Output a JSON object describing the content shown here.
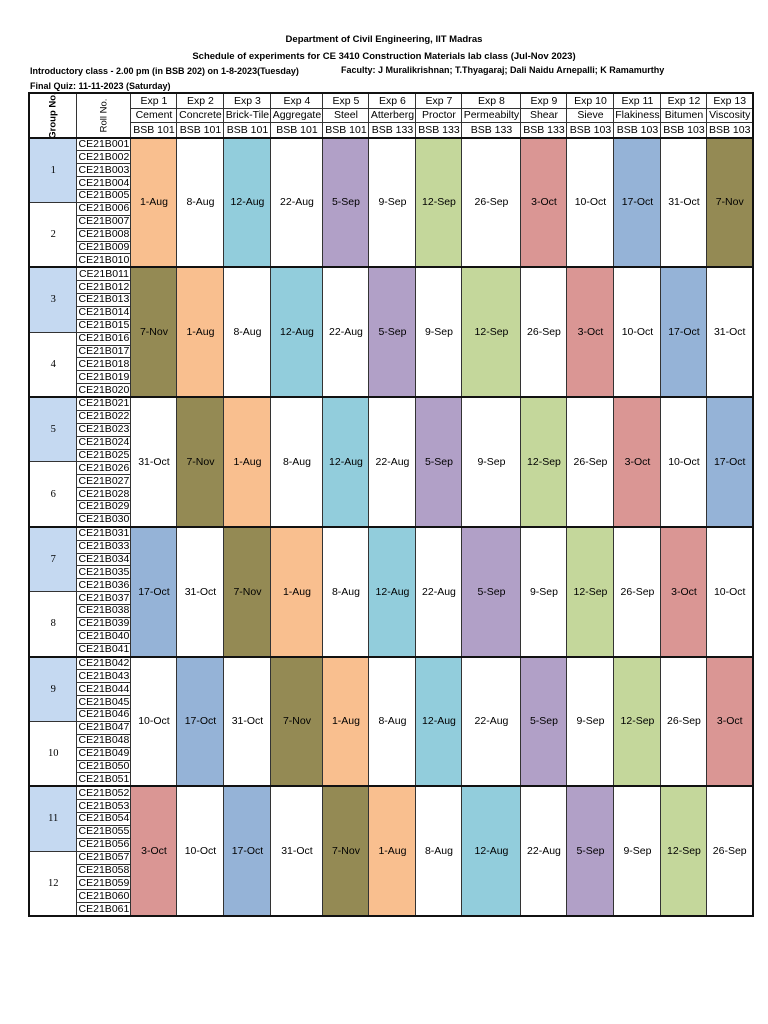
{
  "header": {
    "line1": "Department of Civil Engineering, IIT Madras",
    "line2": "Schedule of experiments for CE 3410 Construction Materials lab class (Jul-Nov 2023)",
    "intro": "Introductory class - 2.00 pm (in BSB 202) on 1-8-2023(Tuesday)",
    "faculty": "Faculty: J Muralikrishnan; T.Thyagaraj; Dali Naidu Arnepalli; K Ramamurthy",
    "quiz": "Final Quiz: 11-11-2023 (Saturday)"
  },
  "table": {
    "group_header": "Group No.",
    "roll_header": "Roll No.",
    "experiments": [
      {
        "exp": "Exp 1",
        "name": "Cement",
        "room": "BSB 101"
      },
      {
        "exp": "Exp 2",
        "name": "Concrete",
        "room": "BSB 101"
      },
      {
        "exp": "Exp 3",
        "name": "Brick-Tile",
        "room": "BSB 101"
      },
      {
        "exp": "Exp 4",
        "name": "Aggregate",
        "room": "BSB 101"
      },
      {
        "exp": "Exp 5",
        "name": "Steel",
        "room": "BSB 101"
      },
      {
        "exp": "Exp 6",
        "name": "Atterberg",
        "room": "BSB 133"
      },
      {
        "exp": "Exp 7",
        "name": "Proctor",
        "room": "BSB 133"
      },
      {
        "exp": "Exp 8",
        "name": "Permeabilty",
        "room": "BSB 133"
      },
      {
        "exp": "Exp 9",
        "name": "Shear",
        "room": "BSB 133"
      },
      {
        "exp": "Exp 10",
        "name": "Sieve",
        "room": "BSB 103"
      },
      {
        "exp": "Exp 11",
        "name": "Flakiness",
        "room": "BSB 103"
      },
      {
        "exp": "Exp 12",
        "name": "Bitumen",
        "room": "BSB 103"
      },
      {
        "exp": "Exp 13",
        "name": "Viscosity",
        "room": "BSB 103"
      }
    ],
    "date_colors": {
      "1-Aug": "#f9bf8f",
      "8-Aug": "#ffffff",
      "12-Aug": "#92cddc",
      "22-Aug": "#ffffff",
      "5-Sep": "#b1a0c7",
      "9-Sep": "#ffffff",
      "12-Sep": "#c4d79b",
      "26-Sep": "#ffffff",
      "3-Oct": "#da9694",
      "10-Oct": "#ffffff",
      "17-Oct": "#95b3d7",
      "31-Oct": "#ffffff",
      "7-Nov": "#948a54"
    },
    "group_shade": "#c5d9f1",
    "blocks": [
      {
        "groups": [
          {
            "no": "1",
            "rolls": [
              "CE21B001",
              "CE21B002",
              "CE21B003",
              "CE21B004",
              "CE21B005"
            ]
          },
          {
            "no": "2",
            "rolls": [
              "CE21B006",
              "CE21B007",
              "CE21B008",
              "CE21B009",
              "CE21B010"
            ]
          }
        ],
        "dates": [
          "1-Aug",
          "8-Aug",
          "12-Aug",
          "22-Aug",
          "5-Sep",
          "9-Sep",
          "12-Sep",
          "26-Sep",
          "3-Oct",
          "10-Oct",
          "17-Oct",
          "31-Oct",
          "7-Nov"
        ]
      },
      {
        "groups": [
          {
            "no": "3",
            "rolls": [
              "CE21B011",
              "CE21B012",
              "CE21B013",
              "CE21B014",
              "CE21B015"
            ]
          },
          {
            "no": "4",
            "rolls": [
              "CE21B016",
              "CE21B017",
              "CE21B018",
              "CE21B019",
              "CE21B020"
            ]
          }
        ],
        "dates": [
          "7-Nov",
          "1-Aug",
          "8-Aug",
          "12-Aug",
          "22-Aug",
          "5-Sep",
          "9-Sep",
          "12-Sep",
          "26-Sep",
          "3-Oct",
          "10-Oct",
          "17-Oct",
          "31-Oct"
        ]
      },
      {
        "groups": [
          {
            "no": "5",
            "rolls": [
              "CE21B021",
              "CE21B022",
              "CE21B023",
              "CE21B024",
              "CE21B025"
            ]
          },
          {
            "no": "6",
            "rolls": [
              "CE21B026",
              "CE21B027",
              "CE21B028",
              "CE21B029",
              "CE21B030"
            ]
          }
        ],
        "dates": [
          "31-Oct",
          "7-Nov",
          "1-Aug",
          "8-Aug",
          "12-Aug",
          "22-Aug",
          "5-Sep",
          "9-Sep",
          "12-Sep",
          "26-Sep",
          "3-Oct",
          "10-Oct",
          "17-Oct"
        ]
      },
      {
        "groups": [
          {
            "no": "7",
            "rolls": [
              "CE21B031",
              "CE21B033",
              "CE21B034",
              "CE21B035",
              "CE21B036"
            ]
          },
          {
            "no": "8",
            "rolls": [
              "CE21B037",
              "CE21B038",
              "CE21B039",
              "CE21B040",
              "CE21B041"
            ]
          }
        ],
        "dates": [
          "17-Oct",
          "31-Oct",
          "7-Nov",
          "1-Aug",
          "8-Aug",
          "12-Aug",
          "22-Aug",
          "5-Sep",
          "9-Sep",
          "12-Sep",
          "26-Sep",
          "3-Oct",
          "10-Oct"
        ]
      },
      {
        "groups": [
          {
            "no": "9",
            "rolls": [
              "CE21B042",
              "CE21B043",
              "CE21B044",
              "CE21B045",
              "CE21B046"
            ]
          },
          {
            "no": "10",
            "rolls": [
              "CE21B047",
              "CE21B048",
              "CE21B049",
              "CE21B050",
              "CE21B051"
            ]
          }
        ],
        "dates": [
          "10-Oct",
          "17-Oct",
          "31-Oct",
          "7-Nov",
          "1-Aug",
          "8-Aug",
          "12-Aug",
          "22-Aug",
          "5-Sep",
          "9-Sep",
          "12-Sep",
          "26-Sep",
          "3-Oct"
        ]
      },
      {
        "groups": [
          {
            "no": "11",
            "rolls": [
              "CE21B052",
              "CE21B053",
              "CE21B054",
              "CE21B055",
              "CE21B056"
            ]
          },
          {
            "no": "12",
            "rolls": [
              "CE21B057",
              "CE21B058",
              "CE21B059",
              "CE21B060",
              "CE21B061"
            ]
          }
        ],
        "dates": [
          "3-Oct",
          "10-Oct",
          "17-Oct",
          "31-Oct",
          "7-Nov",
          "1-Aug",
          "8-Aug",
          "12-Aug",
          "22-Aug",
          "5-Sep",
          "9-Sep",
          "12-Sep",
          "26-Sep"
        ]
      }
    ]
  }
}
